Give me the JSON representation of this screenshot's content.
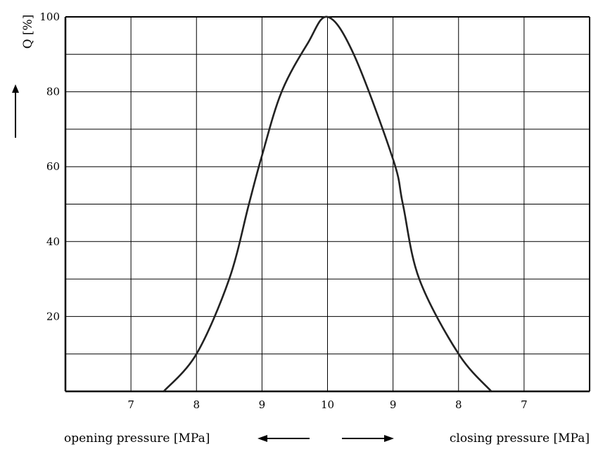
{
  "chart_data": {
    "type": "line",
    "title": "",
    "ylabel": "Q [%]",
    "xlabel_left": "opening pressure [MPa]",
    "xlabel_right": "closing pressure [MPa]",
    "ylim": [
      0,
      100
    ],
    "y_ticks": [
      "20",
      "40",
      "60",
      "80",
      "100"
    ],
    "x_ticks": [
      "7",
      "8",
      "9",
      "10",
      "9",
      "8",
      "7"
    ],
    "x_axis_note": "pressure axis mirrored around 10 MPa: left half = opening pressure, right half = closing pressure",
    "grid": true,
    "legend": "none",
    "series": [
      {
        "values_opening": [
          {
            "p": 7.5,
            "q": 0
          },
          {
            "p": 8.0,
            "q": 10
          },
          {
            "p": 8.5,
            "q": 30
          },
          {
            "p": 8.8,
            "q": 50
          },
          {
            "p": 9.0,
            "q": 63
          },
          {
            "p": 9.3,
            "q": 80
          },
          {
            "p": 9.7,
            "q": 93
          },
          {
            "p": 10.0,
            "q": 100
          }
        ],
        "values_closing": [
          {
            "p": 10.0,
            "q": 100
          },
          {
            "p": 9.6,
            "q": 90
          },
          {
            "p": 9.0,
            "q": 62
          },
          {
            "p": 8.85,
            "q": 50
          },
          {
            "p": 8.6,
            "q": 30
          },
          {
            "p": 8.0,
            "q": 10
          },
          {
            "p": 7.5,
            "q": 0
          }
        ]
      }
    ]
  }
}
